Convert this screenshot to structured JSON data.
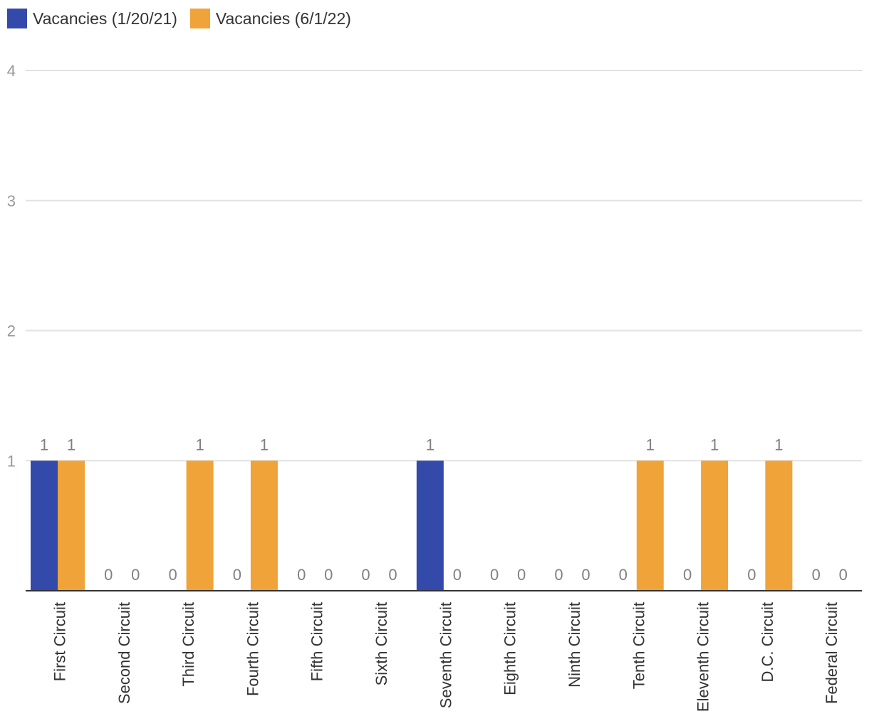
{
  "chart_data": {
    "type": "bar",
    "title": "",
    "xlabel": "",
    "ylabel": "",
    "ylim": [
      0,
      4
    ],
    "yticks": [
      1,
      2,
      3,
      4
    ],
    "grid": true,
    "legend_position": "top-left",
    "categories": [
      "First Circuit",
      "Second Circuit",
      "Third Circuit",
      "Fourth Circuit",
      "Fifth Circuit",
      "Sixth Circuit",
      "Seventh Circuit",
      "Eighth Circuit",
      "Ninth Circuit",
      "Tenth Circuit",
      "Eleventh Circuit",
      "D.C. Circuit",
      "Federal Circuit"
    ],
    "series": [
      {
        "name": "Vacancies (1/20/21)",
        "color": "#334aab",
        "values": [
          1,
          0,
          0,
          0,
          0,
          0,
          1,
          0,
          0,
          0,
          0,
          0,
          0
        ]
      },
      {
        "name": "Vacancies (6/1/22)",
        "color": "#f0a338",
        "values": [
          1,
          0,
          1,
          1,
          0,
          0,
          0,
          0,
          0,
          1,
          1,
          1,
          0
        ]
      }
    ]
  },
  "colors": {
    "grid": "#e2e2e2",
    "axis": "#333333",
    "tick_label": "#999999",
    "data_label": "#808080",
    "category_label": "#333333"
  }
}
